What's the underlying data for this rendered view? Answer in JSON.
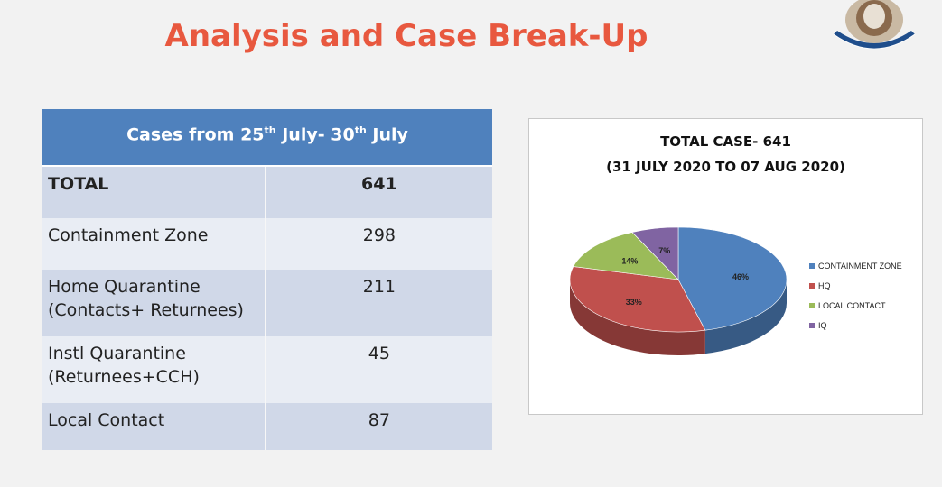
{
  "slide": {
    "title": "Analysis and Case Break-Up"
  },
  "table": {
    "header_main": "Cases from 25",
    "header_sup1": "th",
    "header_mid": " July- 30",
    "header_sup2": "th",
    "header_end": " July",
    "rows": [
      {
        "label_line1": "TOTAL",
        "label_line2": "",
        "value": "641"
      },
      {
        "label_line1": "Containment Zone",
        "label_line2": "",
        "value": "298"
      },
      {
        "label_line1": "Home Quarantine",
        "label_line2": "(Contacts+ Returnees)",
        "value": "211"
      },
      {
        "label_line1": "Instl Quarantine",
        "label_line2": "(Returnees+CCH)",
        "value": "45"
      },
      {
        "label_line1": "Local Contact",
        "label_line2": "",
        "value": "87"
      }
    ]
  },
  "chart_data": {
    "type": "pie",
    "title_line1": "TOTAL CASE- 641",
    "title_line2": "(31 JULY 2020 TO 07 AUG 2020)",
    "categories": [
      "CONTAINMENT ZONE",
      "HQ",
      "LOCAL CONTACT",
      "IQ"
    ],
    "values": [
      46,
      33,
      14,
      7
    ],
    "value_labels": [
      "46%",
      "33%",
      "14%",
      "7%"
    ],
    "colors": [
      "#4f81bd",
      "#c0504d",
      "#9bbb59",
      "#8064a2"
    ],
    "legend_position": "right",
    "style": "3d"
  }
}
